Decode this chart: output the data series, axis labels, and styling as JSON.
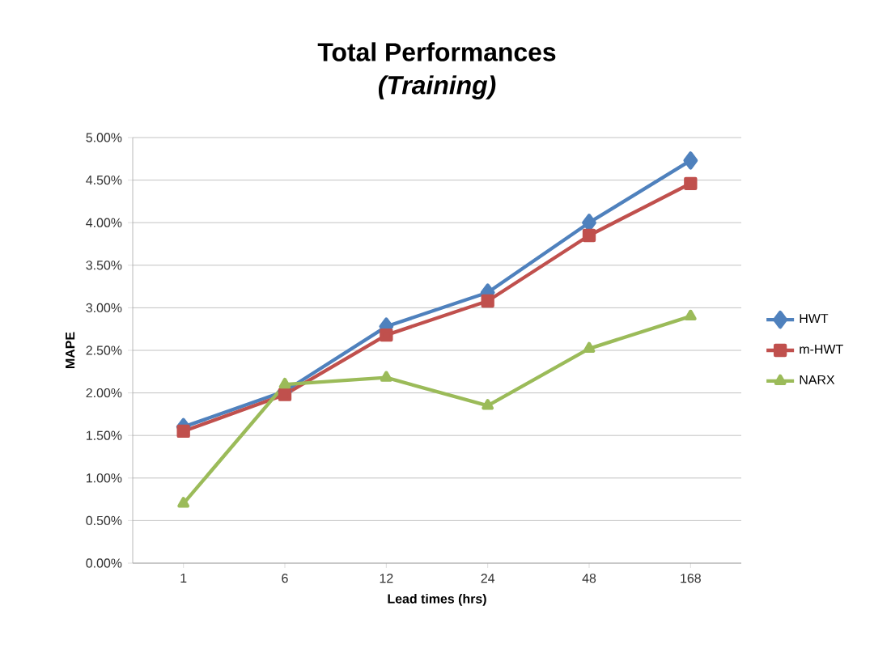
{
  "chart_data": {
    "type": "line",
    "title": "Total Performances",
    "subtitle": "(Training)",
    "xlabel": "Lead times (hrs)",
    "ylabel": "MAPE",
    "categories": [
      "1",
      "6",
      "12",
      "24",
      "48",
      "168"
    ],
    "series": [
      {
        "name": "HWT",
        "color": "#4f81bd",
        "marker": "diamond",
        "values": [
          1.6,
          2.02,
          2.78,
          3.18,
          4.0,
          4.73
        ]
      },
      {
        "name": "m-HWT",
        "color": "#c0504d",
        "marker": "square",
        "values": [
          1.55,
          1.98,
          2.68,
          3.08,
          3.85,
          4.46
        ]
      },
      {
        "name": "NARX",
        "color": "#9bbb59",
        "marker": "triangle",
        "values": [
          0.7,
          2.1,
          2.18,
          1.85,
          2.52,
          2.9
        ]
      }
    ],
    "ylim": [
      0,
      5
    ],
    "yticks": [
      {
        "value": 0,
        "label": "0.00%"
      },
      {
        "value": 0.5,
        "label": "0.50%"
      },
      {
        "value": 1,
        "label": "1.00%"
      },
      {
        "value": 1.5,
        "label": "1.50%"
      },
      {
        "value": 2,
        "label": "2.00%"
      },
      {
        "value": 2.5,
        "label": "2.50%"
      },
      {
        "value": 3,
        "label": "3.00%"
      },
      {
        "value": 3.5,
        "label": "3.50%"
      },
      {
        "value": 4,
        "label": "4.00%"
      },
      {
        "value": 4.5,
        "label": "4.50%"
      },
      {
        "value": 5,
        "label": "5.00%"
      }
    ],
    "grid": "y",
    "legend": "right",
    "line_style": "solid"
  }
}
